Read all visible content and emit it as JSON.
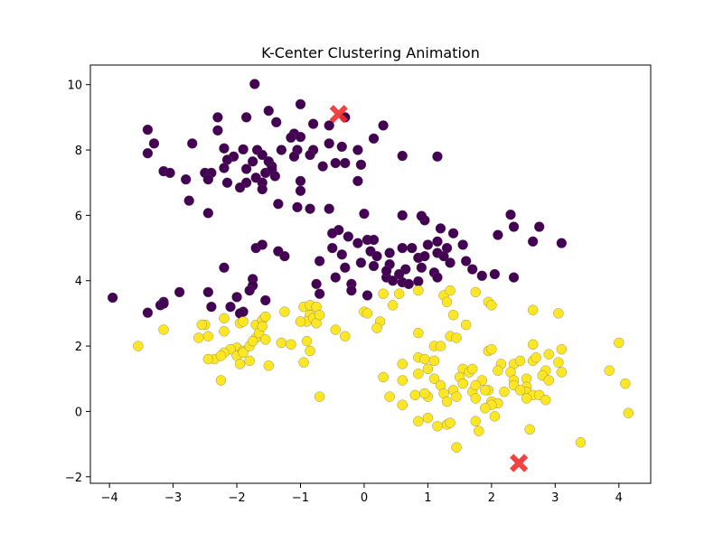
{
  "chart_data": {
    "type": "scatter",
    "title": "K-Center Clustering Animation",
    "xlabel": "",
    "ylabel": "",
    "xlim": [
      -4.3,
      4.5
    ],
    "ylim": [
      -2.2,
      10.6
    ],
    "x_ticks": [
      -4,
      -3,
      -2,
      -1,
      0,
      1,
      2,
      3,
      4
    ],
    "y_ticks": [
      -2,
      0,
      2,
      4,
      6,
      8,
      10
    ],
    "grid": false,
    "colors": {
      "cluster_0": "#440154",
      "cluster_1": "#fde725",
      "center": "#ef2f2f"
    },
    "series": [
      {
        "cluster": 0,
        "points": [
          [
            -1.72,
            10.02
          ],
          [
            -1.0,
            9.4
          ],
          [
            -1.5,
            9.2
          ],
          [
            -1.85,
            9.0
          ],
          [
            -2.3,
            9.0
          ],
          [
            -1.38,
            8.85
          ],
          [
            -0.55,
            8.75
          ],
          [
            -0.3,
            9.0
          ],
          [
            0.3,
            8.75
          ],
          [
            -0.8,
            8.8
          ],
          [
            -3.4,
            8.62
          ],
          [
            -1.1,
            8.5
          ],
          [
            -2.3,
            8.6
          ],
          [
            -1.15,
            8.38
          ],
          [
            -3.3,
            8.2
          ],
          [
            -2.7,
            8.2
          ],
          [
            -1.68,
            8.0
          ],
          [
            -1.9,
            8.02
          ],
          [
            -1.3,
            8.0
          ],
          [
            -1.0,
            8.4
          ],
          [
            -1.05,
            8.0
          ],
          [
            -0.8,
            8.0
          ],
          [
            -0.1,
            8.0
          ],
          [
            -0.35,
            8.1
          ],
          [
            0.15,
            8.35
          ],
          [
            0.6,
            7.82
          ],
          [
            1.15,
            7.8
          ],
          [
            -3.4,
            7.9
          ],
          [
            -2.2,
            8.05
          ],
          [
            -2.05,
            7.8
          ],
          [
            -1.6,
            7.85
          ],
          [
            -0.85,
            7.85
          ],
          [
            -0.55,
            8.2
          ],
          [
            -0.45,
            7.6
          ],
          [
            -0.3,
            7.6
          ],
          [
            -1.5,
            7.65
          ],
          [
            -1.75,
            7.65
          ],
          [
            -2.15,
            7.7
          ],
          [
            -1.45,
            7.5
          ],
          [
            -1.85,
            7.42
          ],
          [
            -1.1,
            7.8
          ],
          [
            -0.65,
            7.5
          ],
          [
            -3.15,
            7.35
          ],
          [
            -3.05,
            7.3
          ],
          [
            -2.5,
            7.3
          ],
          [
            -2.4,
            7.3
          ],
          [
            -2.2,
            7.45
          ],
          [
            -2.45,
            7.1
          ],
          [
            -2.8,
            7.1
          ],
          [
            -2.15,
            7.0
          ],
          [
            -1.7,
            7.15
          ],
          [
            -1.6,
            7.0
          ],
          [
            -1.55,
            7.3
          ],
          [
            -1.45,
            7.4
          ],
          [
            -1.4,
            7.2
          ],
          [
            -1.85,
            7.0
          ],
          [
            -1.6,
            6.8
          ],
          [
            -1.0,
            7.05
          ],
          [
            -1.0,
            6.75
          ],
          [
            -0.1,
            7.05
          ],
          [
            -0.05,
            7.55
          ],
          [
            -1.95,
            6.85
          ],
          [
            -2.75,
            6.45
          ],
          [
            -1.35,
            6.35
          ],
          [
            -1.05,
            6.25
          ],
          [
            -0.85,
            6.2
          ],
          [
            -2.45,
            6.07
          ],
          [
            -0.55,
            6.2
          ],
          [
            0.0,
            6.05
          ],
          [
            0.6,
            6.0
          ],
          [
            0.95,
            5.85
          ],
          [
            0.9,
            5.98
          ],
          [
            1.2,
            5.6
          ],
          [
            2.3,
            6.02
          ],
          [
            2.75,
            5.65
          ],
          [
            2.35,
            5.65
          ],
          [
            -0.4,
            5.55
          ],
          [
            -0.25,
            5.35
          ],
          [
            -0.5,
            5.45
          ],
          [
            -0.5,
            5.0
          ],
          [
            -0.1,
            5.15
          ],
          [
            0.05,
            5.25
          ],
          [
            0.15,
            5.25
          ],
          [
            0.6,
            5.0
          ],
          [
            1.0,
            5.1
          ],
          [
            1.15,
            5.2
          ],
          [
            1.4,
            5.45
          ],
          [
            1.55,
            5.1
          ],
          [
            1.3,
            5.0
          ],
          [
            2.1,
            5.4
          ],
          [
            2.65,
            5.2
          ],
          [
            3.1,
            5.15
          ],
          [
            -1.7,
            5.0
          ],
          [
            -1.6,
            5.1
          ],
          [
            -1.35,
            4.9
          ],
          [
            -1.25,
            4.75
          ],
          [
            -0.7,
            4.6
          ],
          [
            -0.35,
            4.8
          ],
          [
            -0.3,
            4.4
          ],
          [
            -0.05,
            4.55
          ],
          [
            0.1,
            4.9
          ],
          [
            0.2,
            4.75
          ],
          [
            0.4,
            4.85
          ],
          [
            0.75,
            5.0
          ],
          [
            0.85,
            4.7
          ],
          [
            0.95,
            4.75
          ],
          [
            1.15,
            4.85
          ],
          [
            1.25,
            4.75
          ],
          [
            1.35,
            4.55
          ],
          [
            1.6,
            4.6
          ],
          [
            1.7,
            4.35
          ],
          [
            1.85,
            4.15
          ],
          [
            2.05,
            4.2
          ],
          [
            2.35,
            4.1
          ],
          [
            -2.2,
            4.4
          ],
          [
            -1.75,
            4.05
          ],
          [
            0.15,
            4.45
          ],
          [
            0.4,
            4.5
          ],
          [
            0.65,
            4.35
          ],
          [
            0.9,
            4.4
          ],
          [
            1.1,
            4.25
          ],
          [
            0.35,
            4.1
          ],
          [
            0.35,
            4.3
          ],
          [
            0.45,
            4.0
          ],
          [
            0.6,
            3.95
          ],
          [
            0.55,
            4.2
          ],
          [
            0.85,
            3.98
          ],
          [
            0.7,
            3.9
          ],
          [
            1.15,
            4.1
          ],
          [
            -0.45,
            4.1
          ],
          [
            -0.75,
            3.9
          ],
          [
            -0.2,
            3.9
          ],
          [
            -0.2,
            3.7
          ],
          [
            0.05,
            3.55
          ],
          [
            -1.75,
            3.85
          ],
          [
            -1.8,
            3.7
          ],
          [
            -2.45,
            3.65
          ],
          [
            -2.9,
            3.65
          ],
          [
            -3.15,
            3.35
          ],
          [
            -3.2,
            3.25
          ],
          [
            -3.15,
            3.3
          ],
          [
            -2.4,
            3.2
          ],
          [
            -2.0,
            3.5
          ],
          [
            -2.1,
            3.2
          ],
          [
            -1.55,
            3.4
          ],
          [
            -1.9,
            3.05
          ],
          [
            -1.95,
            3.0
          ],
          [
            -3.4,
            3.02
          ],
          [
            -3.95,
            3.48
          ],
          [
            -0.7,
            3.6
          ]
        ]
      },
      {
        "cluster": 1,
        "points": [
          [
            0.3,
            3.6
          ],
          [
            0.55,
            3.6
          ],
          [
            0.85,
            3.7
          ],
          [
            1.25,
            3.55
          ],
          [
            1.35,
            3.7
          ],
          [
            1.3,
            3.35
          ],
          [
            1.75,
            3.65
          ],
          [
            1.95,
            3.35
          ],
          [
            2.0,
            3.25
          ],
          [
            1.4,
            2.95
          ],
          [
            1.6,
            2.65
          ],
          [
            1.35,
            2.3
          ],
          [
            1.45,
            2.25
          ],
          [
            2.65,
            3.1
          ],
          [
            3.05,
            3.0
          ],
          [
            -1.25,
            3.05
          ],
          [
            -0.95,
            3.2
          ],
          [
            -0.85,
            3.25
          ],
          [
            -0.75,
            3.2
          ],
          [
            -0.85,
            2.95
          ],
          [
            -0.9,
            2.75
          ],
          [
            -0.8,
            2.85
          ],
          [
            -0.75,
            2.7
          ],
          [
            -1.0,
            2.75
          ],
          [
            -0.7,
            2.95
          ],
          [
            -0.45,
            2.5
          ],
          [
            -0.3,
            2.3
          ],
          [
            0.0,
            3.05
          ],
          [
            0.05,
            3.0
          ],
          [
            0.25,
            2.75
          ],
          [
            0.2,
            2.55
          ],
          [
            0.45,
            3.25
          ],
          [
            0.85,
            2.4
          ],
          [
            1.1,
            2.0
          ],
          [
            -1.95,
            2.7
          ],
          [
            -1.9,
            2.75
          ],
          [
            -1.7,
            2.65
          ],
          [
            -1.6,
            2.8
          ],
          [
            -1.55,
            2.9
          ],
          [
            -2.2,
            2.85
          ],
          [
            -2.5,
            2.65
          ],
          [
            -2.45,
            2.3
          ],
          [
            -2.2,
            2.45
          ],
          [
            -2.0,
            1.95
          ],
          [
            -2.1,
            1.9
          ],
          [
            -2.2,
            1.8
          ],
          [
            -2.35,
            1.6
          ],
          [
            -2.25,
            1.7
          ],
          [
            -2.0,
            1.7
          ],
          [
            -1.9,
            1.85
          ],
          [
            -1.8,
            1.55
          ],
          [
            -1.95,
            1.45
          ],
          [
            -1.9,
            1.8
          ],
          [
            -1.8,
            2.0
          ],
          [
            -1.7,
            2.25
          ],
          [
            -1.65,
            2.4
          ],
          [
            -1.6,
            2.6
          ],
          [
            -1.75,
            2.15
          ],
          [
            -1.55,
            2.2
          ],
          [
            -1.5,
            1.4
          ],
          [
            -1.3,
            2.1
          ],
          [
            -1.15,
            2.05
          ],
          [
            -0.9,
            2.15
          ],
          [
            -0.85,
            1.85
          ],
          [
            -0.95,
            1.5
          ],
          [
            -2.25,
            0.95
          ],
          [
            -0.7,
            0.45
          ],
          [
            -3.15,
            2.5
          ],
          [
            -3.55,
            2.0
          ],
          [
            -2.55,
            2.65
          ],
          [
            -2.6,
            2.25
          ],
          [
            -2.45,
            1.6
          ],
          [
            0.6,
            1.45
          ],
          [
            0.85,
            1.65
          ],
          [
            0.95,
            1.6
          ],
          [
            1.1,
            1.55
          ],
          [
            1.2,
            2.0
          ],
          [
            1.0,
            1.3
          ],
          [
            0.85,
            1.15
          ],
          [
            0.3,
            1.05
          ],
          [
            0.6,
            0.95
          ],
          [
            1.1,
            1.0
          ],
          [
            1.2,
            0.8
          ],
          [
            1.55,
            1.3
          ],
          [
            1.65,
            1.2
          ],
          [
            1.7,
            1.3
          ],
          [
            1.5,
            1.05
          ],
          [
            1.55,
            0.85
          ],
          [
            1.4,
            0.65
          ],
          [
            1.45,
            0.45
          ],
          [
            1.7,
            0.6
          ],
          [
            1.75,
            0.4
          ],
          [
            1.85,
            0.95
          ],
          [
            1.75,
            0.8
          ],
          [
            1.95,
            1.85
          ],
          [
            2.0,
            1.9
          ],
          [
            2.15,
            1.45
          ],
          [
            2.35,
            1.45
          ],
          [
            2.45,
            1.55
          ],
          [
            2.1,
            1.25
          ],
          [
            2.3,
            1.2
          ],
          [
            2.35,
            0.95
          ],
          [
            2.55,
            1.0
          ],
          [
            2.55,
            0.75
          ],
          [
            2.65,
            1.55
          ],
          [
            2.7,
            1.65
          ],
          [
            2.65,
            2.05
          ],
          [
            2.9,
            1.75
          ],
          [
            3.1,
            1.9
          ],
          [
            2.85,
            1.25
          ],
          [
            3.05,
            1.5
          ],
          [
            3.1,
            1.2
          ],
          [
            2.8,
            1.1
          ],
          [
            2.9,
            0.95
          ],
          [
            2.2,
            0.6
          ],
          [
            2.35,
            0.8
          ],
          [
            2.55,
            0.6
          ],
          [
            2.65,
            0.5
          ],
          [
            2.75,
            0.5
          ],
          [
            2.85,
            0.35
          ],
          [
            1.95,
            0.65
          ],
          [
            2.0,
            0.3
          ],
          [
            2.1,
            0.25
          ],
          [
            2.0,
            0.2
          ],
          [
            1.9,
            0.1
          ],
          [
            2.05,
            -0.15
          ],
          [
            1.25,
            0.55
          ],
          [
            1.0,
            0.45
          ],
          [
            0.95,
            0.55
          ],
          [
            0.8,
            0.5
          ],
          [
            0.4,
            0.45
          ],
          [
            0.6,
            0.2
          ],
          [
            1.3,
            0.3
          ],
          [
            0.85,
            -0.3
          ],
          [
            1.15,
            -0.45
          ],
          [
            1.3,
            -0.4
          ],
          [
            1.35,
            -0.35
          ],
          [
            1.75,
            -0.3
          ],
          [
            1.8,
            -0.6
          ],
          [
            1.45,
            -1.1
          ],
          [
            2.6,
            -0.55
          ],
          [
            3.4,
            -0.95
          ],
          [
            3.85,
            1.25
          ],
          [
            4.0,
            2.1
          ],
          [
            4.1,
            0.85
          ],
          [
            4.15,
            -0.05
          ],
          [
            2.55,
            0.4
          ],
          [
            2.45,
            0.65
          ],
          [
            1.0,
            -0.2
          ],
          [
            1.9,
            0.65
          ]
        ]
      }
    ],
    "centers": [
      [
        -0.4,
        9.1
      ],
      [
        2.43,
        -1.58
      ]
    ]
  }
}
